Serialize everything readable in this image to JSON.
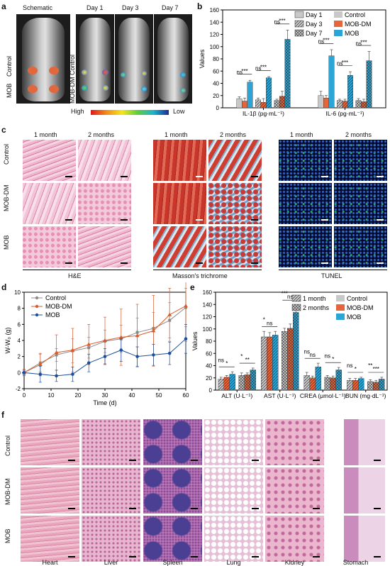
{
  "panels": {
    "a": "a",
    "b": "b",
    "c": "c",
    "d": "d",
    "e": "e",
    "f": "f"
  },
  "panel_a": {
    "columns": [
      "Schematic",
      "Day 1",
      "Day 3",
      "Day 7"
    ],
    "schematic_labels": [
      "Control",
      "MOB"
    ],
    "row_labels": [
      "Control",
      "MOB-DM"
    ],
    "colorbar": {
      "high": "High",
      "low": "Low"
    }
  },
  "panel_c": {
    "col_headers": [
      "1 month",
      "2 months",
      "1 month",
      "2 months",
      "1 month",
      "2 months"
    ],
    "row_labels": [
      "Control",
      "MOB-DM",
      "MOB"
    ],
    "stain_labels": [
      "H&E",
      "Masson's trichrome",
      "TUNEL"
    ]
  },
  "panel_f": {
    "row_labels": [
      "Control",
      "MOB-DM",
      "MOB"
    ],
    "organs": [
      "Heart",
      "Liver",
      "Spleen",
      "Lung",
      "Kidney",
      "Stomach"
    ]
  },
  "chart_data": [
    {
      "id": "b",
      "type": "bar",
      "ylabel": "Values",
      "ylim": [
        0,
        160
      ],
      "yticks": [
        "0",
        "20",
        "40",
        "60",
        "80",
        "100",
        "120",
        "140",
        "160"
      ],
      "groups": [
        "IL-1β (pg·mL⁻¹)",
        "IL-6 (pg·mL⁻¹)"
      ],
      "days": [
        "Day 1",
        "Day 3",
        "Day 7"
      ],
      "series": [
        {
          "name": "Control",
          "color": "#c8c8c8",
          "values": [
            [
              15,
              13,
              12
            ],
            [
              20,
              12,
              12
            ]
          ]
        },
        {
          "name": "MOB-DM",
          "color": "#e8643a",
          "values": [
            [
              11,
              9,
              19
            ],
            [
              16,
              11,
              10
            ]
          ]
        },
        {
          "name": "MOB",
          "color": "#2aa5d6",
          "values": [
            [
              42,
              49,
              112
            ],
            [
              85,
              53,
              77
            ]
          ]
        }
      ],
      "errors": [
        [
          [
            3,
            3,
            2
          ],
          [
            7,
            2,
            3
          ]
        ],
        [
          [
            5,
            6,
            8
          ],
          [
            4,
            3,
            4
          ]
        ],
        [
          [
            3,
            2,
            15
          ],
          [
            10,
            6,
            15
          ]
        ]
      ],
      "annotations": [
        "***",
        "***",
        "***",
        "***",
        "***",
        "***",
        "ns",
        "ns",
        "ns",
        "ns",
        "ns",
        "ns"
      ],
      "legend_position": "top-right"
    },
    {
      "id": "d",
      "type": "line",
      "xlabel": "Time (d)",
      "ylabel": "W-W₀ (g)",
      "xlim": [
        0,
        60
      ],
      "ylim": [
        -2,
        10
      ],
      "xticks": [
        "0",
        "10",
        "20",
        "30",
        "40",
        "50",
        "60"
      ],
      "yticks": [
        "-2",
        "0",
        "2",
        "4",
        "6",
        "8",
        "10"
      ],
      "x": [
        0,
        6,
        12,
        18,
        24,
        30,
        36,
        42,
        48,
        54,
        60
      ],
      "series": [
        {
          "name": "Control",
          "color": "#8c8c8c",
          "marker": "square",
          "values": [
            0,
            1.2,
            2.2,
            2.7,
            3.1,
            3.9,
            4.2,
            5.0,
            5.5,
            6.5,
            8.1
          ],
          "errors": [
            0.3,
            1.1,
            0.8,
            1.5,
            1.3,
            1.4,
            1.7,
            1.8,
            2.0,
            2.2,
            2.4
          ]
        },
        {
          "name": "MOB-DM",
          "color": "#d95a2a",
          "marker": "triangle",
          "values": [
            0,
            1.0,
            2.5,
            2.8,
            3.5,
            4.0,
            4.4,
            4.6,
            5.2,
            7.2,
            8.3
          ],
          "errors": [
            0.4,
            1.4,
            2.2,
            2.7,
            2.5,
            2.9,
            3.5,
            3.9,
            4.4,
            3.3,
            4.4
          ]
        },
        {
          "name": "MOB",
          "color": "#1b4f9c",
          "marker": "circle",
          "values": [
            0,
            -0.2,
            -0.4,
            -0.2,
            1.2,
            2.0,
            2.8,
            2.0,
            2.2,
            2.4,
            4.2
          ],
          "errors": [
            0.3,
            1.0,
            0.7,
            0.9,
            1.1,
            1.0,
            1.4,
            1.2,
            1.3,
            1.4,
            1.8
          ]
        }
      ],
      "legend_position": "top-left"
    },
    {
      "id": "e",
      "type": "bar",
      "ylabel": "Values",
      "ylim": [
        0,
        160
      ],
      "yticks": [
        "0",
        "20",
        "40",
        "60",
        "80",
        "100",
        "120",
        "140",
        "160"
      ],
      "groups": [
        "ALT (U·L⁻¹)",
        "AST (U·L⁻¹)",
        "CREA (μmol·L⁻¹)",
        "BUN (mg·dL⁻¹)"
      ],
      "times": [
        "1 month",
        "2 months"
      ],
      "series": [
        {
          "name": "Control",
          "color": "#c8c8c8",
          "values": [
            [
              18,
              24
            ],
            [
              87,
              96
            ],
            [
              24,
              21
            ],
            [
              16,
              14
            ]
          ]
        },
        {
          "name": "MOB-DM",
          "color": "#e8643a",
          "values": [
            [
              21,
              25
            ],
            [
              87,
              101
            ],
            [
              20,
              20
            ],
            [
              16,
              13
            ]
          ]
        },
        {
          "name": "MOB",
          "color": "#2aa5d6",
          "values": [
            [
              26,
              33
            ],
            [
              90,
              127
            ],
            [
              38,
              33
            ],
            [
              19,
              18
            ]
          ]
        }
      ],
      "errors": [
        [
          [
            3,
            4
          ],
          [
            9,
            5
          ],
          [
            5,
            3
          ],
          [
            3,
            3
          ]
        ],
        [
          [
            3,
            3
          ],
          [
            7,
            7
          ],
          [
            3,
            3
          ],
          [
            3,
            3
          ]
        ],
        [
          [
            4,
            3
          ],
          [
            6,
            12
          ],
          [
            6,
            4
          ],
          [
            2,
            3
          ]
        ]
      ],
      "annotations": [
        "*",
        "**",
        "ns",
        "ns",
        "ns",
        "*",
        "*",
        "***",
        "ns",
        "ns",
        "ns",
        "**"
      ],
      "legend_position": "top-right"
    }
  ]
}
